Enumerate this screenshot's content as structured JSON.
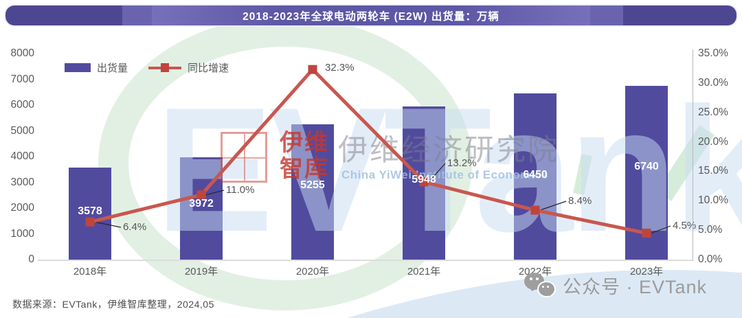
{
  "title": "2018-2023年全球电动两轮车 (E2W) 出货量：万辆",
  "legend": {
    "bars": "出货量",
    "line": "同比增速"
  },
  "chart_data": {
    "type": "bar+line",
    "title": "2018-2023年全球电动两轮车 (E2W) 出货量：万辆",
    "categories": [
      "2018年",
      "2019年",
      "2020年",
      "2021年",
      "2022年",
      "2023年"
    ],
    "series": [
      {
        "name": "出货量",
        "type": "bar",
        "unit": "万辆",
        "axis": "left",
        "values": [
          3578,
          3972,
          5255,
          5948,
          6450,
          6740
        ],
        "color": "#514B9E"
      },
      {
        "name": "同比增速",
        "type": "line",
        "unit": "%",
        "axis": "right",
        "values": [
          6.4,
          11.0,
          32.3,
          13.2,
          8.4,
          4.5
        ],
        "labels": [
          "6.4%",
          "11.0%",
          "32.3%",
          "13.2%",
          "8.4%",
          "4.5%"
        ],
        "color": "#C8574F",
        "marker_color": "#BE453E"
      }
    ],
    "left_axis": {
      "min": 0,
      "max": 8000,
      "step": 1000,
      "tick_labels": [
        "0",
        "1000",
        "2000",
        "3000",
        "4000",
        "5000",
        "6000",
        "7000",
        "8000"
      ]
    },
    "right_axis": {
      "min": 0,
      "max": 35,
      "step": 5,
      "tick_labels": [
        "0.0%",
        "5.0%",
        "10.0%",
        "15.0%",
        "20.0%",
        "25.0%",
        "30.0%",
        "35.0%"
      ]
    },
    "legend_position": "top-left",
    "grid": false
  },
  "watermark": {
    "brand": "EVTank",
    "logo_line1": "伊维",
    "logo_line2": "智库",
    "institute_cn": "伊维经济研究院",
    "institute_en": "China YiWei Institute of Economics"
  },
  "footer": {
    "source": "数据来源：EVTank，伊维智库整理，2024,05"
  },
  "badge": {
    "text": "公众号 · EVTank",
    "icon": "wechat-icon"
  },
  "colors": {
    "banner": "#5D57A5",
    "bar": "#514B9E",
    "line": "#C8574F",
    "marker": "#BE453E"
  }
}
